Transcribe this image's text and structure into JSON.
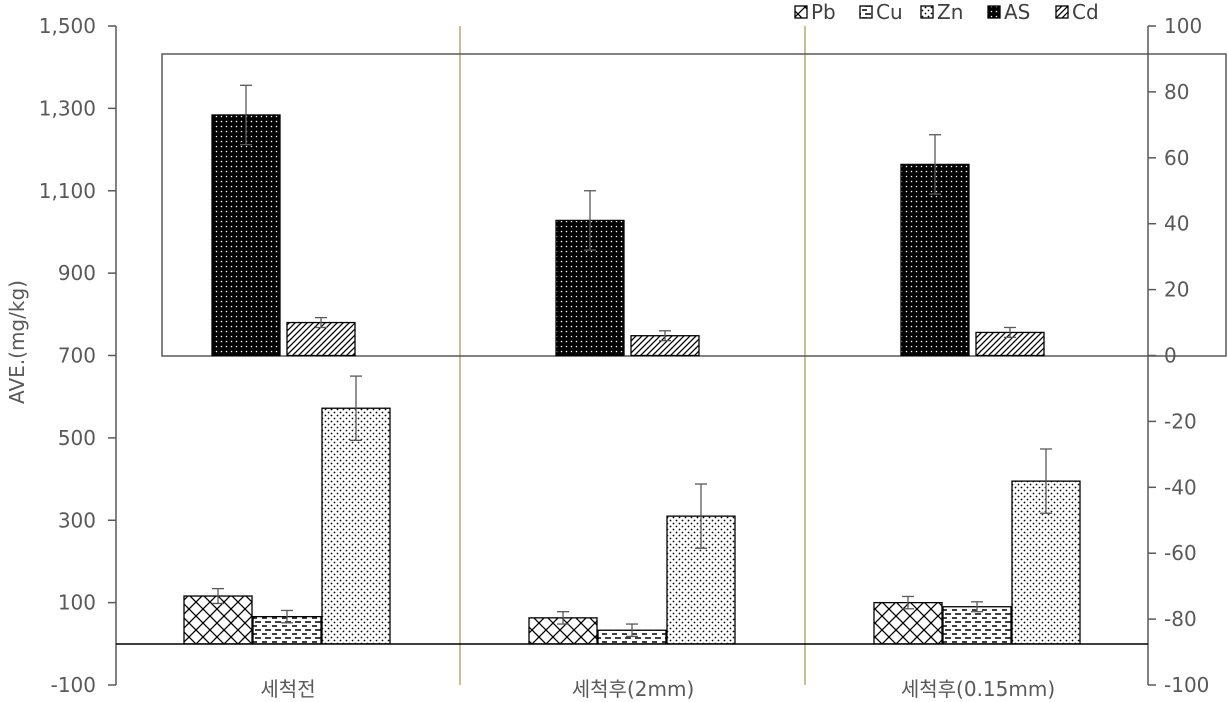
{
  "chart_data": {
    "type": "bar",
    "title": "",
    "ylabel": "AVE.(mg/kg)",
    "categories": [
      "세척전",
      "세척후(2mm)",
      "세척후(0.15mm)"
    ],
    "left_axis": {
      "min": -100,
      "max": 1500,
      "step": 200,
      "tick_labels": [
        "-100",
        "100",
        "300",
        "500",
        "700",
        "900",
        "1,100",
        "1,300",
        "1,500"
      ]
    },
    "right_axis": {
      "min": -100,
      "max": 100,
      "step": 20,
      "tick_labels": [
        "-100",
        "-80",
        "-60",
        "-40",
        "-20",
        "0",
        "20",
        "40",
        "60",
        "80",
        "100"
      ]
    },
    "series": [
      {
        "name": "Pb",
        "axis": "left",
        "pattern": "crosshatch",
        "values": [
          116,
          63,
          100
        ],
        "errors": [
          18,
          15,
          15
        ]
      },
      {
        "name": "Cu",
        "axis": "left",
        "pattern": "dashes",
        "values": [
          66,
          33,
          90
        ],
        "errors": [
          15,
          15,
          12
        ]
      },
      {
        "name": "Zn",
        "axis": "left",
        "pattern": "dots-light",
        "values": [
          572,
          310,
          395
        ],
        "errors": [
          78,
          78,
          78
        ]
      },
      {
        "name": "AS",
        "axis": "right",
        "pattern": "dots-dark",
        "values": [
          73,
          41,
          58
        ],
        "errors": [
          9,
          9,
          9
        ]
      },
      {
        "name": "Cd",
        "axis": "right",
        "pattern": "diagonal",
        "values": [
          10,
          6,
          7
        ],
        "errors": [
          1.5,
          1.5,
          1.5
        ]
      }
    ],
    "legend_position": "top-right",
    "grid": false
  }
}
